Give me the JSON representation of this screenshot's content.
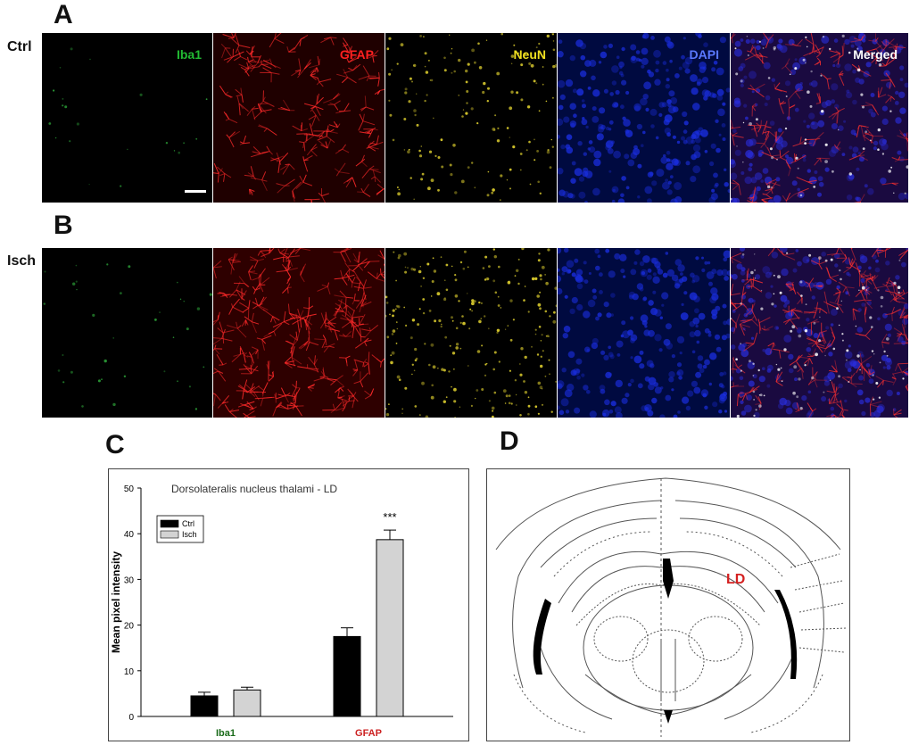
{
  "panels": {
    "A": "A",
    "B": "B",
    "C": "C",
    "D": "D"
  },
  "rows": [
    {
      "label": "Ctrl",
      "intensity": 0.45
    },
    {
      "label": "Isch",
      "intensity": 1.0
    }
  ],
  "channels": [
    {
      "label": "Iba1",
      "color": "#22bb33"
    },
    {
      "label": "GFAP",
      "color": "#ff2020"
    },
    {
      "label": "NeuN",
      "color": "#f0e020"
    },
    {
      "label": "DAPI",
      "color": "#5a78ff"
    },
    {
      "label": "Merged",
      "color": "#ffffff"
    }
  ],
  "chart_data": {
    "type": "bar",
    "title": "Dorsolateralis nucleus thalami - LD",
    "ylabel": "Mean pixel intensity",
    "xlabel": "",
    "ylim": [
      0,
      50
    ],
    "yticks": [
      0,
      10,
      20,
      30,
      40,
      50
    ],
    "categories": [
      "Iba1",
      "GFAP"
    ],
    "category_colors": [
      "#1a6b1a",
      "#cc2222"
    ],
    "series": [
      {
        "name": "Ctrl",
        "color": "#000000",
        "values": [
          4.5,
          17.5
        ],
        "errors": [
          0.8,
          1.9
        ]
      },
      {
        "name": "Isch",
        "color": "#d3d3d3",
        "values": [
          5.8,
          38.7
        ],
        "errors": [
          0.6,
          2.1
        ]
      }
    ],
    "annotations": [
      {
        "category": "GFAP",
        "series": "Isch",
        "text": "***"
      }
    ],
    "legend_position": "upper-left",
    "grid": false
  },
  "atlas": {
    "label": "LD",
    "label_color": "#d42020"
  }
}
